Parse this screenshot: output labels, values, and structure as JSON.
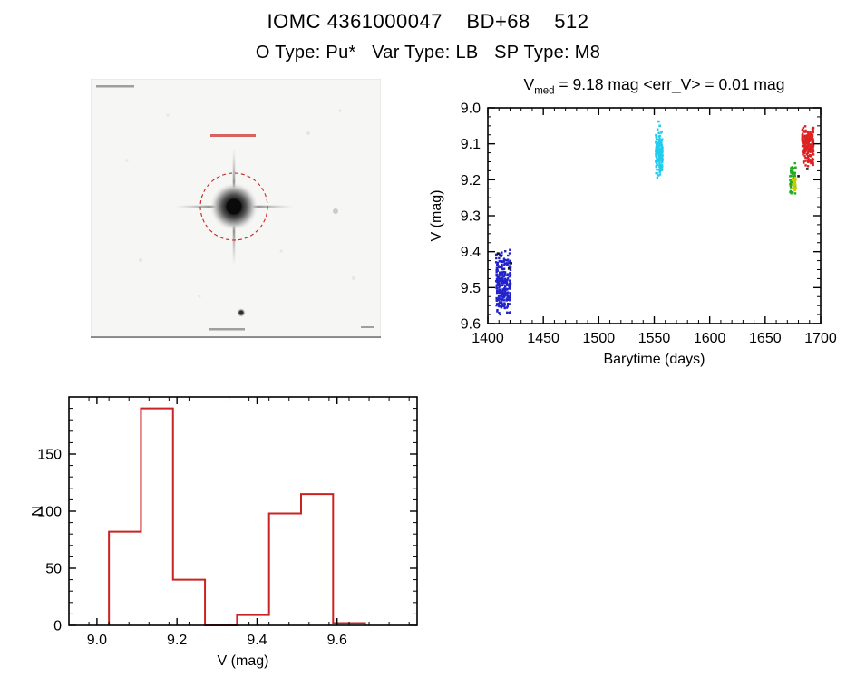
{
  "header": {
    "title": "IOMC 4361000047    BD+68    512",
    "subtitle": "O Type: Pu*   Var Type: LB   SP Type: M8"
  },
  "finder": {
    "aperture_color": "#cc2222"
  },
  "chart_data": [
    {
      "id": "lightcurve",
      "type": "scatter",
      "title": {
        "var": "V",
        "sub": "med",
        "rest": " = 9.18 mag <err_V> = 0.01 mag"
      },
      "xlabel": "Barytime (days)",
      "ylabel": "V (mag)",
      "xlim": [
        1400,
        1700
      ],
      "ylim": [
        9.0,
        9.6
      ],
      "y_axis_inverted_magnitudes": true,
      "xticks": {
        "values": [
          1400,
          1450,
          1500,
          1550,
          1600,
          1650,
          1700
        ],
        "labels": [
          "1400",
          "1450",
          "1500",
          "1550",
          "1600",
          "1650",
          "1700"
        ]
      },
      "yticks": {
        "values": [
          9.0,
          9.1,
          9.2,
          9.3,
          9.4,
          9.5,
          9.6
        ],
        "labels": [
          "9.0",
          "9.1",
          "9.2",
          "9.3",
          "9.4",
          "9.5",
          "9.6"
        ]
      },
      "xminor": 10,
      "yminor": 0.025,
      "series": [
        {
          "name": "epoch-1-blue",
          "color": "#2222cc",
          "x_range": [
            1407,
            1421
          ],
          "y_range": [
            9.39,
            9.585
          ],
          "n": 260,
          "columns": 6
        },
        {
          "name": "epoch-2-cyan",
          "color": "#22ccee",
          "x_range": [
            1551,
            1558
          ],
          "y_range": [
            9.055,
            9.2
          ],
          "n": 150,
          "columns": 3
        },
        {
          "name": "epoch-2-cyan-bright",
          "color": "#22ccee",
          "points": [
            [
              1554,
              9.038
            ],
            [
              1555,
              9.05
            ],
            [
              1553,
              9.06
            ]
          ]
        },
        {
          "name": "epoch-3-green",
          "color": "#22aa22",
          "x_range": [
            1672,
            1678
          ],
          "y_range": [
            9.145,
            9.255
          ],
          "n": 60,
          "columns": 3
        },
        {
          "name": "epoch-3-yellow",
          "color": "#cccc00",
          "x_range": [
            1674,
            1678
          ],
          "y_range": [
            9.18,
            9.235
          ],
          "n": 22,
          "columns": 2
        },
        {
          "name": "epoch-4-red",
          "color": "#dd2222",
          "x_range": [
            1683,
            1694
          ],
          "y_range": [
            9.04,
            9.165
          ],
          "n": 220,
          "columns": 5
        },
        {
          "name": "outliers-black",
          "color": "#111111",
          "points": [
            [
              1409,
              9.405
            ],
            [
              1412,
              9.412
            ],
            [
              1419,
              9.447
            ],
            [
              1421,
              9.432
            ],
            [
              1680,
              9.19
            ],
            [
              1688,
              9.17
            ]
          ]
        }
      ]
    },
    {
      "id": "histogram",
      "type": "bar",
      "xlabel": "V (mag)",
      "ylabel": "N",
      "xlim": [
        8.93,
        9.8
      ],
      "ylim": [
        0,
        200
      ],
      "xticks": {
        "values": [
          9.0,
          9.2,
          9.4,
          9.6
        ],
        "labels": [
          "9.0",
          "9.2",
          "9.4",
          "9.6"
        ]
      },
      "yticks": {
        "values": [
          0,
          50,
          100,
          150
        ],
        "labels": [
          "0",
          "50",
          "100",
          "150"
        ]
      },
      "xminor": 0.05,
      "yminor": 10,
      "bin_edges": [
        9.03,
        9.11,
        9.19,
        9.27,
        9.35,
        9.43,
        9.51,
        9.59,
        9.67
      ],
      "counts": [
        82,
        190,
        40,
        0,
        9,
        98,
        115,
        2
      ],
      "color": "#cc2222"
    }
  ]
}
